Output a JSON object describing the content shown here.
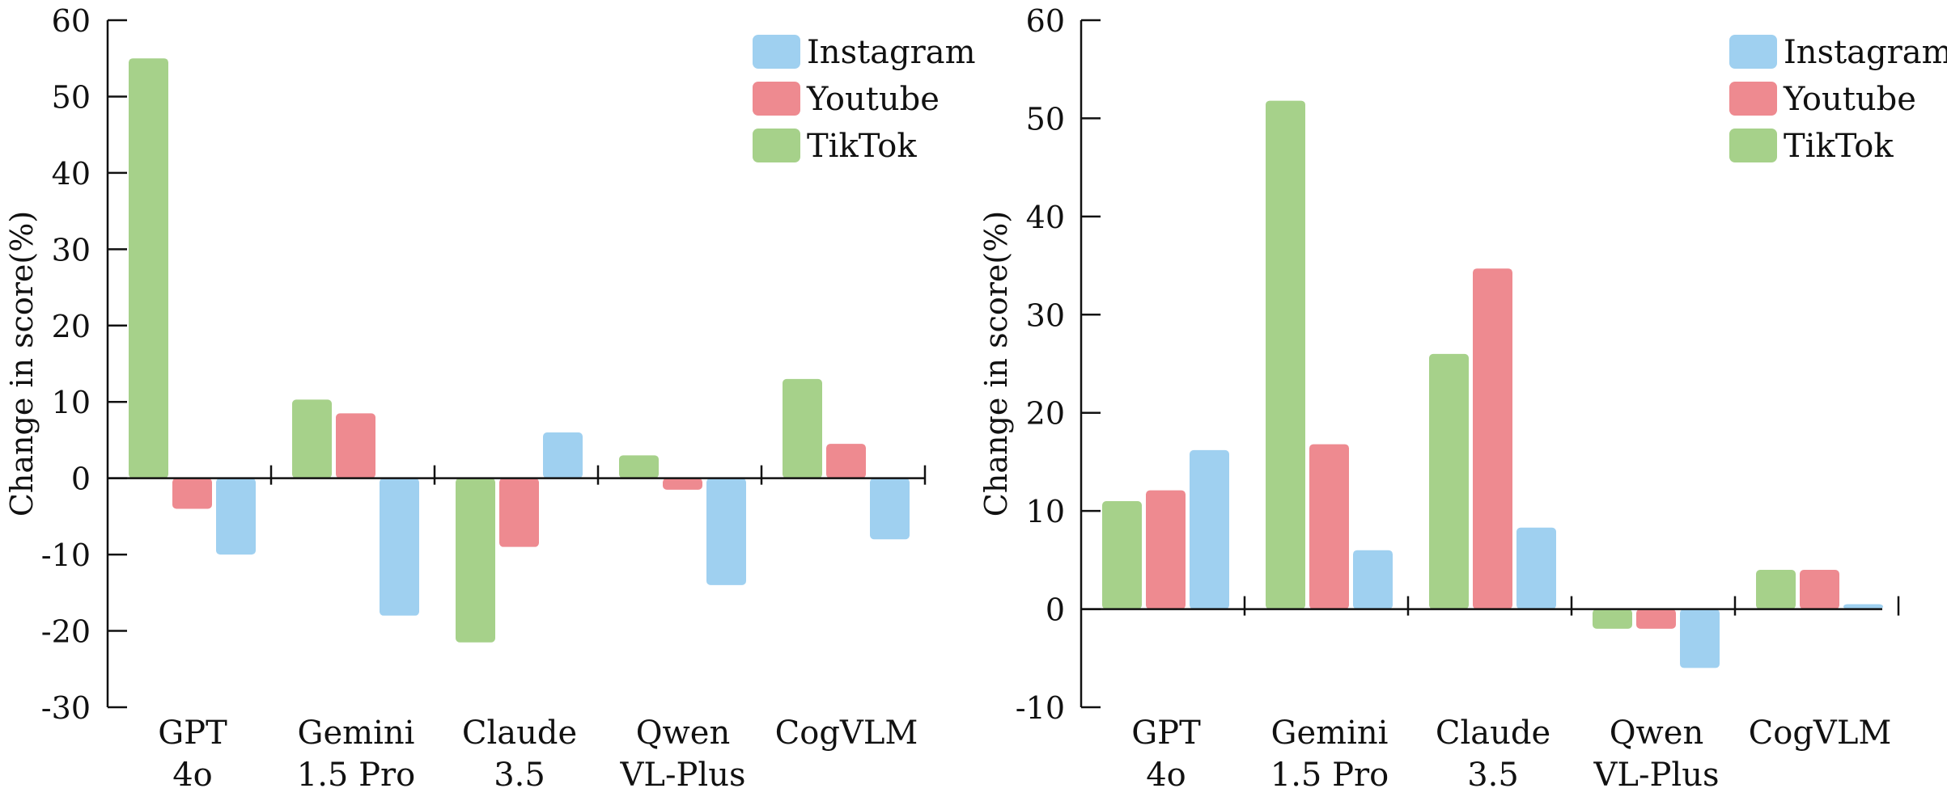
{
  "colors": {
    "Instagram": "#9fd0f0",
    "Youtube": "#ee8a90",
    "TikTok": "#a6d18a",
    "axis": "#111111"
  },
  "chart_data": [
    {
      "type": "bar",
      "categories": [
        [
          "GPT",
          "4o"
        ],
        [
          "Gemini",
          "1.5 Pro"
        ],
        [
          "Claude",
          "3.5"
        ],
        [
          "Qwen",
          "VL-Plus"
        ],
        [
          "CogVLM"
        ]
      ],
      "series": [
        {
          "name": "TikTok",
          "values": [
            55,
            10.3,
            -21.5,
            3,
            13
          ]
        },
        {
          "name": "Youtube",
          "values": [
            -4,
            8.5,
            -9,
            -1.5,
            4.5
          ]
        },
        {
          "name": "Instagram",
          "values": [
            -10,
            -18,
            6,
            -14,
            -8
          ]
        }
      ],
      "legend_order": [
        "Instagram",
        "Youtube",
        "TikTok"
      ],
      "title": "",
      "xlabel": "",
      "ylabel": "Change in score(%)",
      "ylim": [
        -30,
        60
      ],
      "yticks": [
        -30,
        -20,
        -10,
        0,
        10,
        20,
        30,
        40,
        50,
        60
      ],
      "ytick_labels": [
        "-30",
        "-20",
        "-10",
        "0",
        "10",
        "20",
        "30",
        "40",
        "50",
        "60"
      ],
      "legend": "top-right"
    },
    {
      "type": "bar",
      "categories": [
        [
          "GPT",
          "4o"
        ],
        [
          "Gemini",
          "1.5 Pro"
        ],
        [
          "Claude",
          "3.5"
        ],
        [
          "Qwen",
          "VL-Plus"
        ],
        [
          "CogVLM"
        ]
      ],
      "series": [
        {
          "name": "TikTok",
          "values": [
            11,
            51.8,
            26,
            -2,
            4
          ]
        },
        {
          "name": "Youtube",
          "values": [
            12.1,
            16.8,
            34.7,
            -2,
            4
          ]
        },
        {
          "name": "Instagram",
          "values": [
            16.2,
            6,
            8.3,
            -6,
            0.5
          ]
        }
      ],
      "legend_order": [
        "Instagram",
        "Youtube",
        "TikTok"
      ],
      "title": "",
      "xlabel": "",
      "ylabel": "Change in score(%)",
      "ylim": [
        -10,
        60
      ],
      "yticks": [
        -10,
        0,
        10,
        20,
        30,
        40,
        50,
        60
      ],
      "ytick_labels": [
        "-10",
        "0",
        "10",
        "20",
        "30",
        "40",
        "50",
        "60"
      ],
      "legend": "top-right"
    }
  ]
}
